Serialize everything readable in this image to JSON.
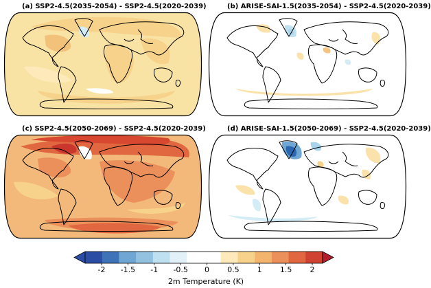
{
  "panels": [
    {
      "title": "(a) SSP2-4.5(2035-2054) - SSP2-4.5(2020-2039)",
      "background": "#f8e3a5",
      "blobs": [
        {
          "c": "#f6d28a",
          "sh": "b1"
        },
        {
          "c": "#f6d28a",
          "sh": "b2"
        },
        {
          "c": "#f3c27a",
          "sh": "b3"
        },
        {
          "c": "#d4ecf5",
          "sh": "b4"
        },
        {
          "c": "#f6d28a",
          "sh": "b5"
        },
        {
          "c": "#f6d28a",
          "sh": "b6"
        },
        {
          "c": "#ffffff",
          "sh": "b7"
        },
        {
          "c": "#fde9b9",
          "sh": "b8"
        }
      ]
    },
    {
      "title": "(b) ARISE-SAI-1.5(2035-2054) - SSP2-4.5(2020-2039)",
      "background": "#ffffff",
      "blobs": [
        {
          "c": "#bfe0ef",
          "sh": "c1"
        },
        {
          "c": "#a9d3ea",
          "sh": "c2"
        },
        {
          "c": "#fbe2aa",
          "sh": "c3"
        },
        {
          "c": "#fbe2aa",
          "sh": "c4"
        },
        {
          "c": "#f4c482",
          "sh": "c5"
        },
        {
          "c": "#fbe2aa",
          "sh": "c6"
        },
        {
          "c": "#fbe2aa",
          "sh": "c7"
        },
        {
          "c": "#d4ecf5",
          "sh": "c8"
        }
      ]
    },
    {
      "title": "(c) SSP2-4.5(2050-2069) - SSP2-4.5(2020-2039)",
      "background": "#f3b97a",
      "blobs": [
        {
          "c": "#e0673f",
          "sh": "d1"
        },
        {
          "c": "#d8472f",
          "sh": "d2"
        },
        {
          "c": "#c9362b",
          "sh": "d3"
        },
        {
          "c": "#eb8f5b",
          "sh": "d4"
        },
        {
          "c": "#eb8f5b",
          "sh": "d5"
        },
        {
          "c": "#ffffff",
          "sh": "d6"
        },
        {
          "c": "#eb8f5b",
          "sh": "d7"
        },
        {
          "c": "#e0673f",
          "sh": "d8"
        },
        {
          "c": "#f6d28a",
          "sh": "d9"
        },
        {
          "c": "#f6d28a",
          "sh": "d10"
        }
      ]
    },
    {
      "title": "(d) ARISE-SAI-1.5(2050-2069) - SSP2-4.5(2020-2039)",
      "background": "#ffffff",
      "blobs": [
        {
          "c": "#6fa6d3",
          "sh": "e1"
        },
        {
          "c": "#2b67b1",
          "sh": "e2"
        },
        {
          "c": "#a9d3ea",
          "sh": "e3"
        },
        {
          "c": "#fbe2aa",
          "sh": "e4"
        },
        {
          "c": "#fbe2aa",
          "sh": "e5"
        },
        {
          "c": "#d4ecf5",
          "sh": "e6"
        },
        {
          "c": "#fbe2aa",
          "sh": "e7"
        },
        {
          "c": "#fbe2aa",
          "sh": "e8"
        },
        {
          "c": "#f6d28a",
          "sh": "e9"
        },
        {
          "c": "#d4ecf5",
          "sh": "e10"
        }
      ]
    }
  ],
  "colorbar": {
    "colors": [
      "#2b4da3",
      "#3f73b8",
      "#6fa6d3",
      "#93c2e1",
      "#bfe0ef",
      "#e2f1f8",
      "#ffffff",
      "#ffffff",
      "#fde9b9",
      "#f6d28a",
      "#f3b56d",
      "#eb8f5b",
      "#e0673f",
      "#d04232"
    ],
    "left_color": "#2b4da3",
    "right_color": "#b31e2c",
    "ticks": [
      "-2",
      "-1.5",
      "-1",
      "-0.5",
      "0",
      "0.5",
      "1",
      "1.5",
      "2"
    ],
    "label": "2m Temperature (K)"
  },
  "coastline_color": "#000000"
}
